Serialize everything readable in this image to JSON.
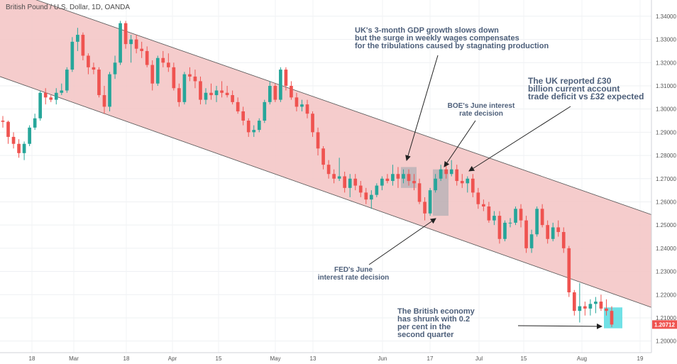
{
  "chart_data": {
    "type": "candlestick",
    "title": "British Pound / U.S. Dollar, 1D, OANDA",
    "y_range": [
      1.195,
      1.347
    ],
    "y_ticks": [
      "1.34000",
      "1.33000",
      "1.32000",
      "1.31000",
      "1.30000",
      "1.29000",
      "1.28000",
      "1.27000",
      "1.26000",
      "1.25000",
      "1.24000",
      "1.23000",
      "1.22000",
      "1.21000",
      "1.20000"
    ],
    "x_ticks": [
      "18",
      "Mar",
      "18",
      "Apr",
      "15",
      "May",
      "13",
      "Jun",
      "17",
      "Jul",
      "15",
      "Aug",
      "19"
    ],
    "last_price": "1.20712",
    "channel": {
      "upper": {
        "start": 1.3525,
        "end": 1.2545
      },
      "lower": {
        "start": 1.314,
        "end": 1.2145
      }
    },
    "candles": [
      [
        1.295,
        1.297,
        1.292,
        1.2945
      ],
      [
        1.2945,
        1.295,
        1.285,
        1.288
      ],
      [
        1.288,
        1.29,
        1.283,
        1.285
      ],
      [
        1.285,
        1.287,
        1.279,
        1.281
      ],
      [
        1.281,
        1.286,
        1.278,
        1.285
      ],
      [
        1.285,
        1.293,
        1.284,
        1.292
      ],
      [
        1.292,
        1.298,
        1.291,
        1.296
      ],
      [
        1.296,
        1.308,
        1.295,
        1.307
      ],
      [
        1.307,
        1.309,
        1.302,
        1.305
      ],
      [
        1.305,
        1.306,
        1.303,
        1.304
      ],
      [
        1.304,
        1.309,
        1.302,
        1.307
      ],
      [
        1.307,
        1.311,
        1.306,
        1.308
      ],
      [
        1.308,
        1.318,
        1.307,
        1.317
      ],
      [
        1.317,
        1.331,
        1.316,
        1.329
      ],
      [
        1.329,
        1.335,
        1.325,
        1.332
      ],
      [
        1.332,
        1.333,
        1.321,
        1.323
      ],
      [
        1.323,
        1.324,
        1.315,
        1.318
      ],
      [
        1.318,
        1.32,
        1.315,
        1.317
      ],
      [
        1.317,
        1.318,
        1.305,
        1.306
      ],
      [
        1.306,
        1.31,
        1.298,
        1.301
      ],
      [
        1.301,
        1.316,
        1.299,
        1.315
      ],
      [
        1.315,
        1.323,
        1.313,
        1.32
      ],
      [
        1.32,
        1.338,
        1.319,
        1.337
      ],
      [
        1.337,
        1.338,
        1.326,
        1.328
      ],
      [
        1.328,
        1.332,
        1.32,
        1.33
      ],
      [
        1.33,
        1.332,
        1.324,
        1.326
      ],
      [
        1.326,
        1.329,
        1.322,
        1.325
      ],
      [
        1.325,
        1.327,
        1.318,
        1.319
      ],
      [
        1.319,
        1.321,
        1.308,
        1.311
      ],
      [
        1.311,
        1.323,
        1.31,
        1.322
      ],
      [
        1.322,
        1.325,
        1.318,
        1.32
      ],
      [
        1.32,
        1.324,
        1.316,
        1.318
      ],
      [
        1.318,
        1.32,
        1.308,
        1.309
      ],
      [
        1.309,
        1.311,
        1.301,
        1.303
      ],
      [
        1.303,
        1.316,
        1.302,
        1.315
      ],
      [
        1.315,
        1.318,
        1.312,
        1.314
      ],
      [
        1.314,
        1.317,
        1.309,
        1.312
      ],
      [
        1.312,
        1.314,
        1.302,
        1.304
      ],
      [
        1.304,
        1.309,
        1.302,
        1.307
      ],
      [
        1.307,
        1.311,
        1.304,
        1.306
      ],
      [
        1.306,
        1.31,
        1.303,
        1.308
      ],
      [
        1.308,
        1.312,
        1.305,
        1.307
      ],
      [
        1.307,
        1.31,
        1.305,
        1.306
      ],
      [
        1.306,
        1.308,
        1.302,
        1.303
      ],
      [
        1.303,
        1.305,
        1.298,
        1.299
      ],
      [
        1.299,
        1.301,
        1.293,
        1.295
      ],
      [
        1.295,
        1.296,
        1.288,
        1.29
      ],
      [
        1.29,
        1.293,
        1.288,
        1.291
      ],
      [
        1.291,
        1.296,
        1.29,
        1.295
      ],
      [
        1.295,
        1.304,
        1.294,
        1.303
      ],
      [
        1.303,
        1.312,
        1.302,
        1.31
      ],
      [
        1.31,
        1.311,
        1.303,
        1.304
      ],
      [
        1.304,
        1.318,
        1.303,
        1.317
      ],
      [
        1.317,
        1.318,
        1.308,
        1.31
      ],
      [
        1.31,
        1.312,
        1.304,
        1.305
      ],
      [
        1.305,
        1.307,
        1.299,
        1.301
      ],
      [
        1.301,
        1.304,
        1.299,
        1.302
      ],
      [
        1.302,
        1.304,
        1.296,
        1.298
      ],
      [
        1.298,
        1.299,
        1.288,
        1.29
      ],
      [
        1.29,
        1.292,
        1.28,
        1.283
      ],
      [
        1.283,
        1.284,
        1.274,
        1.276
      ],
      [
        1.276,
        1.278,
        1.27,
        1.272
      ],
      [
        1.272,
        1.274,
        1.268,
        1.27
      ],
      [
        1.27,
        1.279,
        1.269,
        1.271
      ],
      [
        1.271,
        1.273,
        1.264,
        1.266
      ],
      [
        1.266,
        1.272,
        1.262,
        1.27
      ],
      [
        1.27,
        1.272,
        1.265,
        1.267
      ],
      [
        1.267,
        1.269,
        1.262,
        1.264
      ],
      [
        1.264,
        1.266,
        1.259,
        1.261
      ],
      [
        1.261,
        1.265,
        1.257,
        1.263
      ],
      [
        1.263,
        1.268,
        1.262,
        1.267
      ],
      [
        1.267,
        1.271,
        1.265,
        1.27
      ],
      [
        1.27,
        1.272,
        1.268,
        1.269
      ],
      [
        1.269,
        1.276,
        1.267,
        1.272
      ],
      [
        1.272,
        1.275,
        1.266,
        1.27
      ],
      [
        1.27,
        1.274,
        1.268,
        1.272
      ],
      [
        1.272,
        1.274,
        1.267,
        1.269
      ],
      [
        1.269,
        1.272,
        1.265,
        1.268
      ],
      [
        1.268,
        1.27,
        1.259,
        1.26
      ],
      [
        1.26,
        1.262,
        1.252,
        1.255
      ],
      [
        1.255,
        1.266,
        1.254,
        1.265
      ],
      [
        1.265,
        1.272,
        1.264,
        1.27
      ],
      [
        1.27,
        1.276,
        1.269,
        1.274
      ],
      [
        1.274,
        1.277,
        1.27,
        1.272
      ],
      [
        1.272,
        1.278,
        1.271,
        1.274
      ],
      [
        1.274,
        1.276,
        1.267,
        1.269
      ],
      [
        1.269,
        1.272,
        1.266,
        1.268
      ],
      [
        1.268,
        1.271,
        1.264,
        1.27
      ],
      [
        1.27,
        1.272,
        1.262,
        1.264
      ],
      [
        1.264,
        1.266,
        1.257,
        1.259
      ],
      [
        1.259,
        1.261,
        1.256,
        1.258
      ],
      [
        1.258,
        1.26,
        1.251,
        1.252
      ],
      [
        1.252,
        1.256,
        1.25,
        1.254
      ],
      [
        1.254,
        1.256,
        1.242,
        1.244
      ],
      [
        1.244,
        1.252,
        1.243,
        1.251
      ],
      [
        1.251,
        1.253,
        1.249,
        1.251
      ],
      [
        1.251,
        1.258,
        1.25,
        1.257
      ],
      [
        1.257,
        1.259,
        1.249,
        1.252
      ],
      [
        1.252,
        1.254,
        1.238,
        1.24
      ],
      [
        1.24,
        1.248,
        1.238,
        1.246
      ],
      [
        1.246,
        1.258,
        1.245,
        1.257
      ],
      [
        1.257,
        1.259,
        1.249,
        1.25
      ],
      [
        1.25,
        1.252,
        1.242,
        1.244
      ],
      [
        1.244,
        1.251,
        1.243,
        1.249
      ],
      [
        1.249,
        1.252,
        1.245,
        1.247
      ],
      [
        1.247,
        1.249,
        1.238,
        1.24
      ],
      [
        1.24,
        1.241,
        1.219,
        1.221
      ],
      [
        1.221,
        1.222,
        1.211,
        1.213
      ],
      [
        1.213,
        1.225,
        1.208,
        1.215
      ],
      [
        1.215,
        1.217,
        1.211,
        1.214
      ],
      [
        1.214,
        1.218,
        1.211,
        1.216
      ],
      [
        1.216,
        1.219,
        1.212,
        1.217
      ],
      [
        1.217,
        1.22,
        1.213,
        1.214
      ],
      [
        1.214,
        1.218,
        1.211,
        1.213
      ],
      [
        1.213,
        1.215,
        1.206,
        1.2071
      ]
    ],
    "highlight_boxes": [
      {
        "from": 1.275,
        "to": 1.266
      },
      {
        "from": 1.274,
        "to": 1.254
      },
      {
        "from": 1.2145,
        "to": 1.2055
      }
    ]
  },
  "annotations": {
    "gdp": [
      "UK's 3-month GDP growth slows down",
      "but the surge in weekly wages compensates",
      "for the tribulations caused by stagnating production"
    ],
    "deficit": [
      "The UK reported £30",
      "billion current account",
      "trade deficit vs £32 expected"
    ],
    "boe": [
      "BOE's June interest",
      "rate decision"
    ],
    "fed": [
      "FED's June",
      "interest rate decision"
    ],
    "economy": [
      "The British economy",
      "has shrunk with 0.2",
      "per cent in the",
      "second quarter"
    ]
  },
  "colors": {
    "up": "#26a69a",
    "down": "#ef5350",
    "channel_fill": "#f4c7c7",
    "channel_line": "#555555",
    "highlight_gray": "#9aa5ad",
    "highlight_cyan": "#4dd9e0"
  }
}
